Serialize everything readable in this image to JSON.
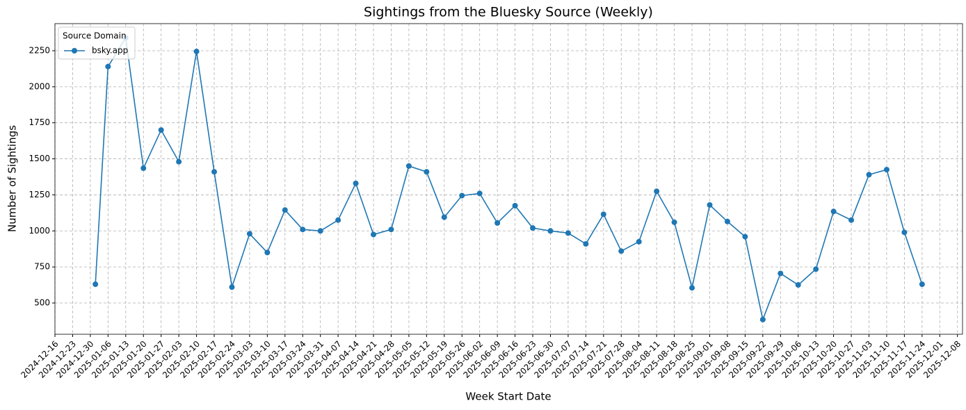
{
  "chart_data": {
    "type": "line",
    "title": "Sightings from the Bluesky Source (Weekly)",
    "x_label": "Week Start Date",
    "y_label": "Number of Sightings",
    "legend_title": "Source Domain",
    "legend_position": "upper left",
    "grid": true,
    "x": [
      "2025-01-01",
      "2025-01-06",
      "2025-01-13",
      "2025-01-20",
      "2025-01-27",
      "2025-02-03",
      "2025-02-10",
      "2025-02-17",
      "2025-02-24",
      "2025-03-03",
      "2025-03-10",
      "2025-03-17",
      "2025-03-24",
      "2025-03-31",
      "2025-04-07",
      "2025-04-14",
      "2025-04-21",
      "2025-04-28",
      "2025-05-05",
      "2025-05-12",
      "2025-05-19",
      "2025-05-26",
      "2025-06-02",
      "2025-06-09",
      "2025-06-16",
      "2025-06-23",
      "2025-06-30",
      "2025-07-07",
      "2025-07-14",
      "2025-07-21",
      "2025-07-28",
      "2025-08-04",
      "2025-08-11",
      "2025-08-18",
      "2025-08-25",
      "2025-09-01",
      "2025-09-08",
      "2025-09-15",
      "2025-09-22",
      "2025-09-29",
      "2025-10-06",
      "2025-10-13",
      "2025-10-20",
      "2025-10-27",
      "2025-11-03",
      "2025-11-10",
      "2025-11-17",
      "2025-11-24"
    ],
    "series": [
      {
        "name": "bsky.app",
        "color": "#1f77b4",
        "values": [
          630,
          2140,
          2340,
          1435,
          1700,
          1480,
          2245,
          1410,
          610,
          980,
          850,
          1145,
          1010,
          1000,
          1075,
          1330,
          975,
          1010,
          1450,
          1410,
          1095,
          1245,
          1260,
          1055,
          1175,
          1020,
          1000,
          985,
          910,
          1115,
          860,
          925,
          1275,
          1060,
          605,
          1180,
          1065,
          960,
          385,
          705,
          625,
          735,
          1135,
          1075,
          1390,
          1425,
          990,
          630
        ]
      }
    ],
    "xlim": [
      "2024-12-16",
      "2025-12-10"
    ],
    "xticks": [
      "2024-12-16",
      "2024-12-23",
      "2024-12-30",
      "2025-01-06",
      "2025-01-13",
      "2025-01-20",
      "2025-01-27",
      "2025-02-03",
      "2025-02-10",
      "2025-02-17",
      "2025-02-24",
      "2025-03-03",
      "2025-03-10",
      "2025-03-17",
      "2025-03-24",
      "2025-03-31",
      "2025-04-07",
      "2025-04-14",
      "2025-04-21",
      "2025-04-28",
      "2025-05-05",
      "2025-05-12",
      "2025-05-19",
      "2025-05-26",
      "2025-06-02",
      "2025-06-09",
      "2025-06-16",
      "2025-06-23",
      "2025-06-30",
      "2025-07-07",
      "2025-07-14",
      "2025-07-21",
      "2025-07-28",
      "2025-08-04",
      "2025-08-11",
      "2025-08-18",
      "2025-08-25",
      "2025-09-01",
      "2025-09-08",
      "2025-09-15",
      "2025-09-22",
      "2025-09-29",
      "2025-10-06",
      "2025-10-13",
      "2025-10-20",
      "2025-10-27",
      "2025-11-03",
      "2025-11-10",
      "2025-11-17",
      "2025-11-24",
      "2025-12-01",
      "2025-12-08"
    ],
    "ylim": [
      283,
      2438
    ],
    "yticks": [
      500,
      750,
      1000,
      1250,
      1500,
      1750,
      2000,
      2250
    ]
  }
}
